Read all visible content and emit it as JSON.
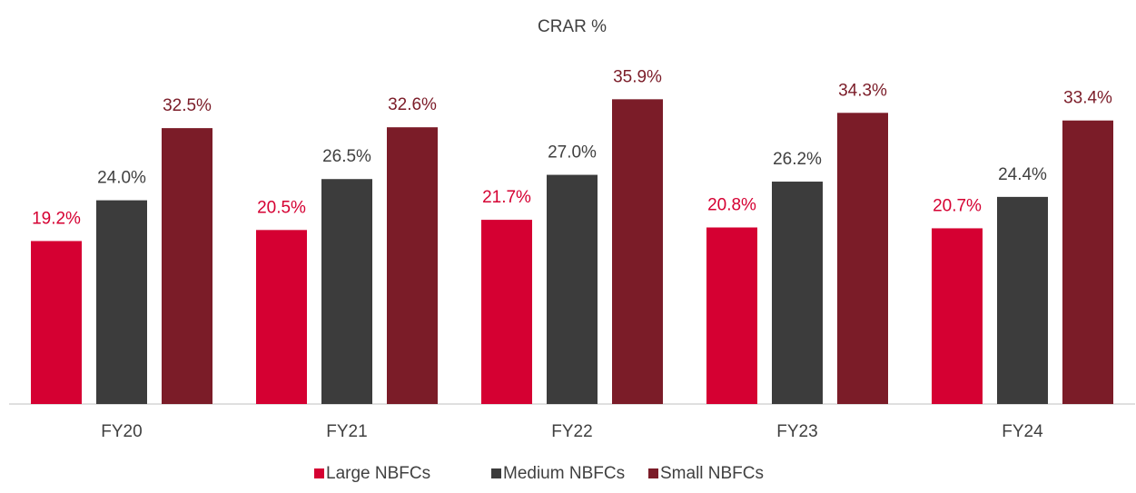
{
  "chart_data": {
    "type": "bar",
    "title": "CRAR %",
    "categories": [
      "FY20",
      "FY21",
      "FY22",
      "FY23",
      "FY24"
    ],
    "series": [
      {
        "name": "Large NBFCs",
        "color": "#d50032",
        "values": [
          19.2,
          20.5,
          21.7,
          20.8,
          20.7
        ],
        "value_labels": [
          "19.2%",
          "20.5%",
          "21.7%",
          "20.8%",
          "20.7%"
        ]
      },
      {
        "name": "Medium NBFCs",
        "color": "#3c3c3c",
        "values": [
          24.0,
          26.5,
          27.0,
          26.2,
          24.4
        ],
        "value_labels": [
          "24.0%",
          "26.5%",
          "27.0%",
          "26.2%",
          "24.4%"
        ]
      },
      {
        "name": "Small NBFCs",
        "color": "#7b1c28",
        "values": [
          32.5,
          32.6,
          35.9,
          34.3,
          33.4
        ],
        "value_labels": [
          "32.5%",
          "32.6%",
          "35.9%",
          "34.3%",
          "33.4%"
        ]
      }
    ],
    "ylim": [
      0,
      40
    ],
    "legend": "bottom"
  }
}
